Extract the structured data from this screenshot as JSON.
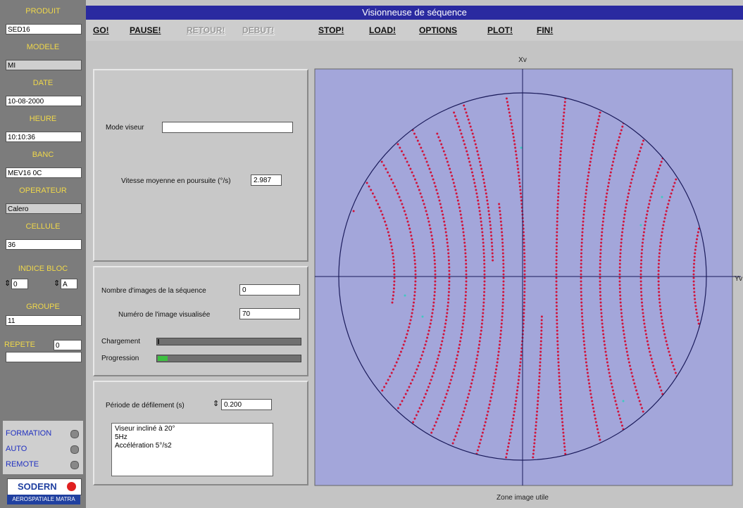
{
  "sidebar": {
    "fields": [
      {
        "label": "PRODUIT",
        "value": "SED16"
      },
      {
        "label": "MODELE",
        "value": "MI"
      },
      {
        "label": "DATE",
        "value": "10-08-2000"
      },
      {
        "label": "HEURE",
        "value": "10:10:36"
      },
      {
        "label": "BANC",
        "value": "MEV16 0C"
      },
      {
        "label": "OPERATEUR",
        "value": "Calero"
      },
      {
        "label": "CELLULE",
        "value": "36"
      }
    ],
    "indice_bloc": {
      "label": "INDICE BLOC",
      "values": [
        "0",
        "A"
      ]
    },
    "groupe": {
      "label": "GROUPE",
      "value": "11"
    },
    "repete": {
      "label": "REPETE",
      "value": "0"
    },
    "modes": [
      "FORMATION",
      "AUTO",
      "REMOTE"
    ],
    "logo": {
      "name": "SODERN",
      "caption": "AEROSPATIALE MATRA"
    }
  },
  "window": {
    "title": "Visionneuse de séquence",
    "menu": [
      {
        "label": "GO!",
        "enabled": true
      },
      {
        "label": "PAUSE!",
        "enabled": true
      },
      {
        "label": "RETOUR!",
        "enabled": false
      },
      {
        "label": "DEBUT!",
        "enabled": false
      },
      {
        "label": "STOP!",
        "enabled": true
      },
      {
        "label": "LOAD!",
        "enabled": true
      },
      {
        "label": "OPTIONS",
        "enabled": true
      },
      {
        "label": "PLOT!",
        "enabled": true
      },
      {
        "label": "FIN!",
        "enabled": true
      }
    ]
  },
  "panel1": {
    "mode_label": "Mode viseur",
    "mode_value": "",
    "speed_label": "Vitesse moyenne en poursuite (°/s)",
    "speed_value": "2.987"
  },
  "panel2": {
    "count_label": "Nombre d'images de la séquence",
    "count_value": "0",
    "image_label": "Numéro de l'image visualisée",
    "image_value": "70",
    "loading_label": "Chargement",
    "progress_label": "Progression"
  },
  "panel3": {
    "period_label": "Période de défilement (s)",
    "period_value": "0.200",
    "notes": [
      "Viseur incliné à 20°",
      "5Hz",
      "Accélération 5°/s2"
    ]
  },
  "plot": {
    "x_axis_label": "Xv",
    "y_axis_label": "Yv",
    "caption": "Zone image utile"
  }
}
